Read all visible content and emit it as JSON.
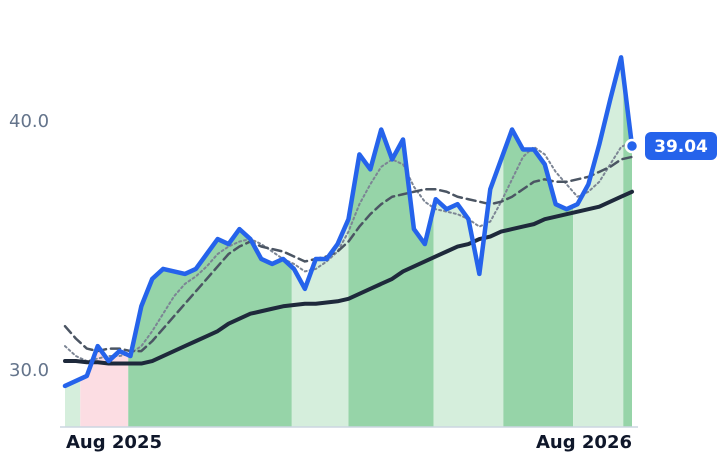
{
  "chart_data": {
    "type": "line",
    "x": [
      0,
      1,
      2,
      3,
      4,
      5,
      6,
      7,
      8,
      9,
      10,
      11,
      12,
      13,
      14,
      15,
      16,
      17,
      18,
      19,
      20,
      21,
      22,
      23,
      24,
      25,
      26,
      27,
      28,
      29,
      30,
      31,
      32,
      33,
      34,
      35,
      36,
      37,
      38,
      39,
      40,
      41,
      42,
      43,
      44,
      45,
      46,
      47,
      48,
      49,
      50,
      51,
      52
    ],
    "xlim": [
      0,
      52
    ],
    "xticks": [
      {
        "value": 0,
        "label": "Aug 2025"
      },
      {
        "value": 52,
        "label": "Aug 2026"
      }
    ],
    "ylim": [
      27.75,
      44.1
    ],
    "yticks": [
      {
        "value": 30,
        "label": "30.0"
      },
      {
        "value": 40,
        "label": "40.0"
      }
    ],
    "series": [
      {
        "color": "#2563eb",
        "values": [
          29.4,
          29.6,
          29.8,
          31.0,
          30.4,
          30.8,
          30.6,
          32.6,
          33.7,
          34.1,
          34.0,
          33.9,
          34.1,
          34.7,
          35.3,
          35.1,
          35.7,
          35.3,
          34.5,
          34.3,
          34.5,
          34.1,
          33.3,
          34.5,
          34.5,
          35.1,
          36.1,
          38.7,
          38.1,
          39.7,
          38.5,
          39.3,
          35.7,
          35.1,
          36.9,
          36.5,
          36.7,
          36.1,
          33.9,
          37.3,
          38.5,
          39.7,
          38.9,
          38.9,
          38.3,
          36.7,
          36.5,
          36.7,
          37.5,
          39.1,
          40.9,
          42.6,
          39.04
        ]
      },
      {
        "color": "#1e293b",
        "style": "solid",
        "values": [
          30.4,
          30.4,
          30.35,
          30.35,
          30.3,
          30.3,
          30.3,
          30.3,
          30.4,
          30.6,
          30.8,
          31.0,
          31.2,
          31.4,
          31.6,
          31.9,
          32.1,
          32.3,
          32.4,
          32.5,
          32.6,
          32.65,
          32.7,
          32.7,
          32.75,
          32.8,
          32.9,
          33.1,
          33.3,
          33.5,
          33.7,
          34.0,
          34.2,
          34.4,
          34.6,
          34.8,
          35.0,
          35.1,
          35.3,
          35.4,
          35.6,
          35.7,
          35.8,
          35.9,
          36.1,
          36.2,
          36.3,
          36.4,
          36.5,
          36.6,
          36.8,
          37.0,
          37.2
        ]
      },
      {
        "color": "#4b5563",
        "style": "dashed",
        "values": [
          31.8,
          31.3,
          30.9,
          30.8,
          30.9,
          30.9,
          30.8,
          30.8,
          31.2,
          31.7,
          32.2,
          32.7,
          33.2,
          33.7,
          34.2,
          34.7,
          35.0,
          35.2,
          35.0,
          34.9,
          34.8,
          34.6,
          34.4,
          34.5,
          34.6,
          34.8,
          35.2,
          35.8,
          36.3,
          36.7,
          37.0,
          37.1,
          37.2,
          37.3,
          37.3,
          37.2,
          37.0,
          36.9,
          36.8,
          36.7,
          36.8,
          37.0,
          37.3,
          37.6,
          37.7,
          37.6,
          37.6,
          37.7,
          37.8,
          38.0,
          38.2,
          38.5,
          38.6
        ]
      },
      {
        "color": "#7c8594",
        "style": "dotted",
        "values": [
          31.0,
          30.6,
          30.4,
          30.5,
          30.6,
          30.6,
          30.7,
          31.0,
          31.6,
          32.3,
          33.0,
          33.5,
          33.8,
          34.2,
          34.7,
          35.0,
          35.2,
          35.3,
          35.1,
          34.8,
          34.5,
          34.3,
          34.0,
          34.1,
          34.4,
          34.8,
          35.6,
          36.7,
          37.5,
          38.2,
          38.5,
          38.3,
          37.4,
          36.8,
          36.5,
          36.4,
          36.3,
          36.1,
          35.8,
          36.0,
          36.8,
          37.7,
          38.6,
          39.0,
          38.7,
          38.0,
          37.5,
          37.0,
          37.2,
          37.6,
          38.3,
          39.0,
          39.2
        ]
      }
    ],
    "bands": [
      {
        "start": 0,
        "end": 1.4,
        "color": "#d5eedc"
      },
      {
        "start": 1.4,
        "end": 5.8,
        "color": "#fcdde3"
      },
      {
        "start": 5.8,
        "end": 20.8,
        "color": "#96d4a8"
      },
      {
        "start": 20.8,
        "end": 26,
        "color": "#d5eedc"
      },
      {
        "start": 26,
        "end": 33.8,
        "color": "#96d4a8"
      },
      {
        "start": 33.8,
        "end": 40.2,
        "color": "#d5eedc"
      },
      {
        "start": 40.2,
        "end": 46.6,
        "color": "#96d4a8"
      },
      {
        "start": 46.6,
        "end": 51.2,
        "color": "#d5eedc"
      },
      {
        "start": 51.2,
        "end": 52,
        "color": "#96d4a8"
      }
    ]
  }
}
